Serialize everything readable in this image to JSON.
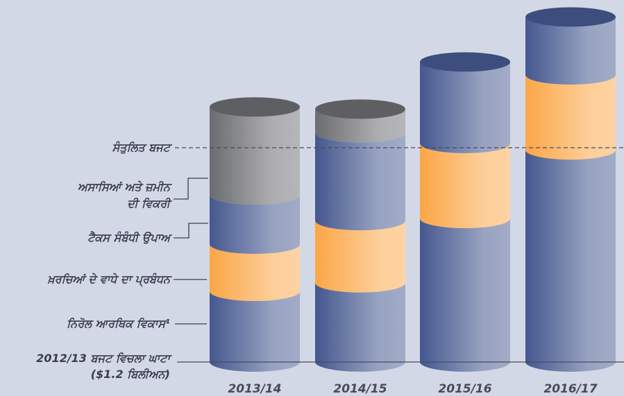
{
  "chart_data": {
    "type": "stacked_cylinder",
    "categories": [
      "2013/14",
      "2014/15",
      "2015/16",
      "2016/17"
    ],
    "series": [
      {
        "name": "ਨਿਰੋਲ ਆਰਥਿਕ ਵਿਕਾਸ¹",
        "color": "#44578f",
        "values": [
          33,
          37,
          67,
          99
        ]
      },
      {
        "name": "ਖ਼ਰਚਿਆਂ ਦੇ ਵਾਧੇ ਦਾ ਪ੍ਰਬੰਧਨ",
        "color": "#fba646",
        "values": [
          22,
          29,
          35,
          35
        ]
      },
      {
        "name": "ਟੈਕਸ ਸੰਬੰਧੀ ਉਪਾਅ",
        "color": "#44578f",
        "values": [
          23,
          41,
          38,
          27
        ]
      },
      {
        "name": "ਅਸਾਸਿਆਂ ਅਤੇ ਜ਼ਮੀਨ ਦੀ ਵਿਕਰੀ",
        "color": "#6b6c70",
        "values": [
          41,
          11,
          0,
          0
        ]
      }
    ],
    "reference_line": {
      "label": "ਸੰਤੁਲਿਤ ਬਜਟ",
      "value": 100
    },
    "baseline_label": [
      "2012/13 ਬਜਟ ਵਿਚਲਾ ਘਾਟਾ",
      "($1.2 ਬਿਲੀਅਨ)"
    ],
    "ylim": [
      0,
      170
    ]
  }
}
